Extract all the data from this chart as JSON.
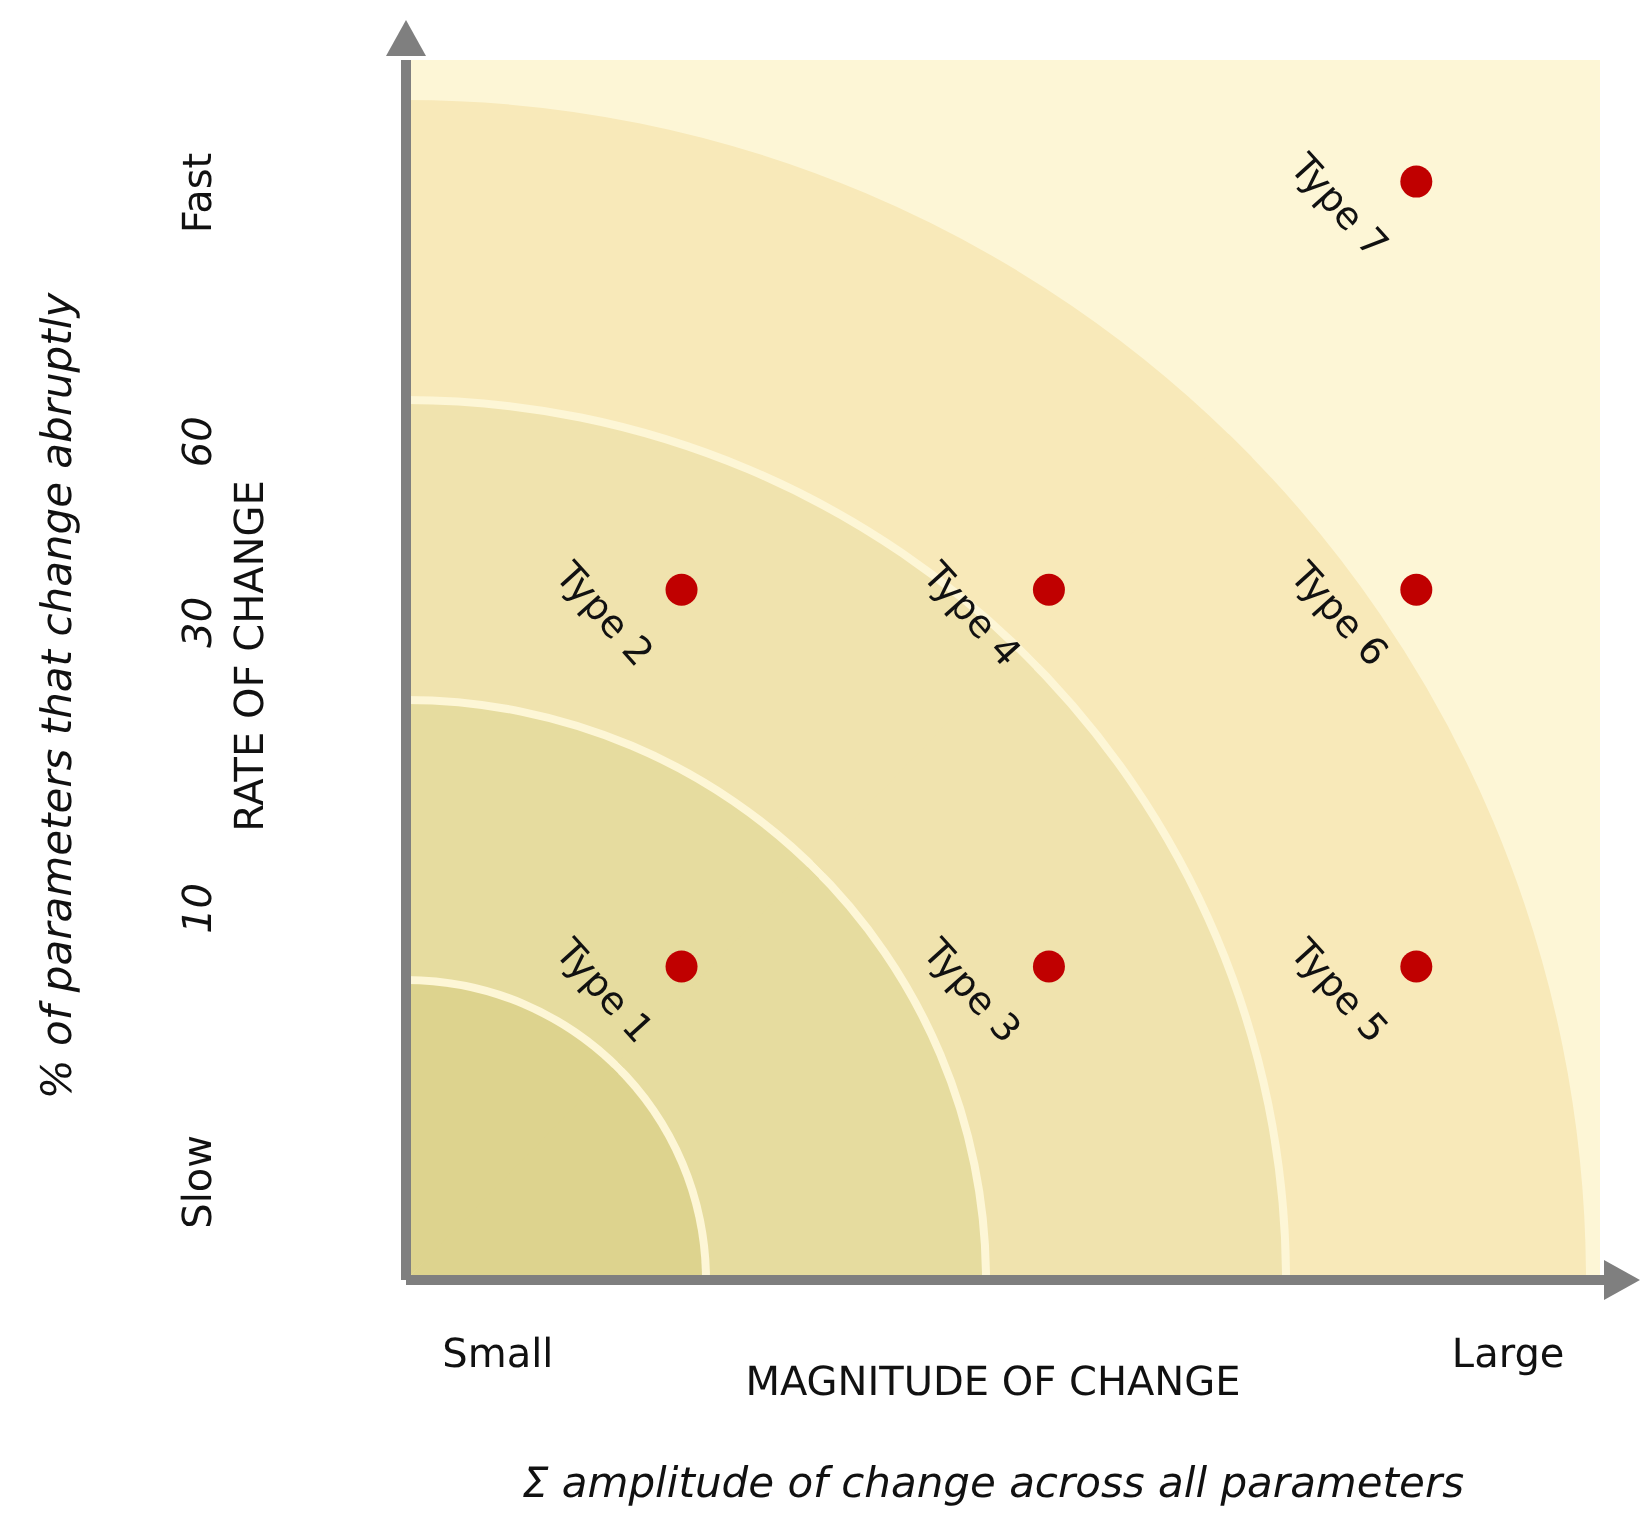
{
  "chart_data": {
    "type": "scatter",
    "xlabel": "MAGNITUDE OF CHANGE",
    "ylabel": "RATE OF CHANGE",
    "annotations": [
      "Σ amplitude of change across all parameters",
      "% of parameters that change abruptly"
    ],
    "categories": [
      "Small",
      null,
      null,
      null,
      null,
      null,
      null,
      null,
      null,
      null,
      null,
      "Large"
    ],
    "ylim": [
      2.4,
      260
    ],
    "yticks": [
      {
        "value": 3.5,
        "label": "Slow"
      },
      10,
      30,
      60,
      {
        "value": 156,
        "label": "Fast"
      }
    ],
    "log": "y",
    "grid": false,
    "marker": "circle",
    "series": [
      {
        "name": "Type 1",
        "color": "#c00000",
        "values": [
          null,
          null,
          8,
          null,
          null,
          null,
          null,
          null,
          null,
          null,
          null,
          null
        ]
      },
      {
        "name": "Type 2",
        "color": "#c00000",
        "values": [
          null,
          null,
          34,
          null,
          null,
          null,
          null,
          null,
          null,
          null,
          null,
          null
        ]
      },
      {
        "name": "Type 3",
        "color": "#c00000",
        "values": [
          null,
          null,
          null,
          null,
          null,
          null,
          8,
          null,
          null,
          null,
          null,
          null
        ]
      },
      {
        "name": "Type 4",
        "color": "#c00000",
        "values": [
          null,
          null,
          null,
          null,
          null,
          null,
          34,
          null,
          null,
          null,
          null,
          null
        ]
      },
      {
        "name": "Type 5",
        "color": "#c00000",
        "values": [
          null,
          null,
          null,
          null,
          null,
          null,
          null,
          null,
          null,
          null,
          8,
          null
        ]
      },
      {
        "name": "Type 6",
        "color": "#c00000",
        "values": [
          null,
          null,
          null,
          null,
          null,
          null,
          null,
          null,
          null,
          null,
          34,
          null
        ]
      },
      {
        "name": "Type 7",
        "color": "#c00000",
        "values": [
          null,
          null,
          null,
          null,
          null,
          null,
          null,
          null,
          null,
          null,
          163,
          null
        ]
      }
    ]
  }
}
